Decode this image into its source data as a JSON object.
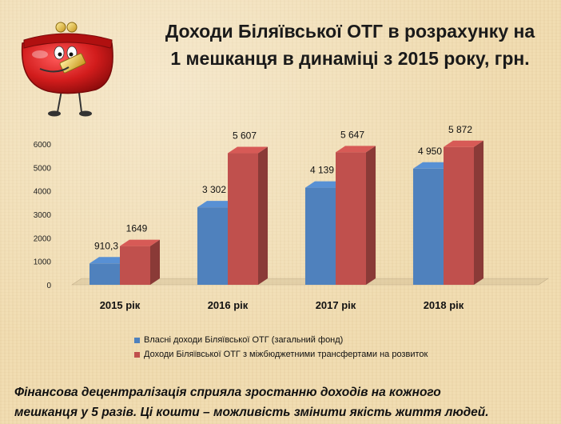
{
  "title": {
    "line1": "Доходи Біляївської ОТГ в розрахунку на",
    "line2": "1 мешканця в динаміці з 2015 року, грн."
  },
  "chart_data": {
    "type": "bar",
    "categories": [
      "2015 рік",
      "2016 рік",
      "2017 рік",
      "2018 рік"
    ],
    "series": [
      {
        "name": "Власні доходи Біляївської ОТГ (загальний фонд)",
        "values": [
          910.3,
          3302,
          4139,
          4950
        ],
        "labels": [
          "910,3",
          "3 302",
          "4 139",
          "4 950"
        ],
        "color": "#4f81bd"
      },
      {
        "name": "Доходи  Біляївської ОТГ з міжбюджетними трансфертами на розвиток",
        "values": [
          1649,
          5607,
          5647,
          5872
        ],
        "labels": [
          "1649",
          "5 607",
          "5 647",
          "5 872"
        ],
        "color": "#c0504d"
      }
    ],
    "yticks": [
      "0",
      "1000",
      "2000",
      "3000",
      "4000",
      "5000",
      "6000"
    ],
    "ylim": [
      0,
      6000
    ],
    "style": "3d-column",
    "legend": "bottom"
  },
  "caption": {
    "line1": "Фінансова децентралізація сприяла зростанню доходів на кожного",
    "line2": "мешканця у 5 разів. Ці кошти – можливість змінити якість життя людей."
  },
  "icons": [
    "red-wallet-icon"
  ]
}
